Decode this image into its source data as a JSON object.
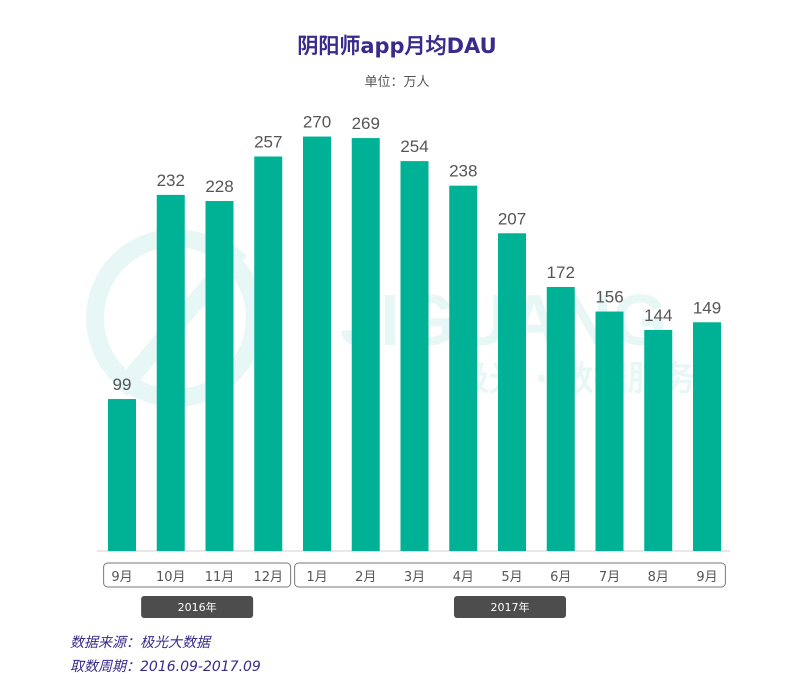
{
  "title": "阴阳师app月均DAU",
  "subtitle": "单位：万人",
  "watermark": {
    "brand": "JIGUANG",
    "text": "极光 · 数据服务"
  },
  "chart_data": {
    "type": "bar",
    "title": "阴阳师app月均DAU",
    "unit": "单位：万人",
    "categories": [
      "9月",
      "10月",
      "11月",
      "12月",
      "1月",
      "2月",
      "3月",
      "4月",
      "5月",
      "6月",
      "7月",
      "8月",
      "9月"
    ],
    "values": [
      99,
      232,
      228,
      257,
      270,
      269,
      254,
      238,
      207,
      172,
      156,
      144,
      149
    ],
    "year_groups": [
      {
        "label": "2016年",
        "count": 4
      },
      {
        "label": "2017年",
        "count": 9
      }
    ],
    "ylim": [
      0,
      300
    ],
    "bar_color": "#00b295",
    "grid": false,
    "data_labels": true
  },
  "footer": {
    "source": "数据来源：极光大数据",
    "period": "取数周期：2016.09-2017.09"
  }
}
